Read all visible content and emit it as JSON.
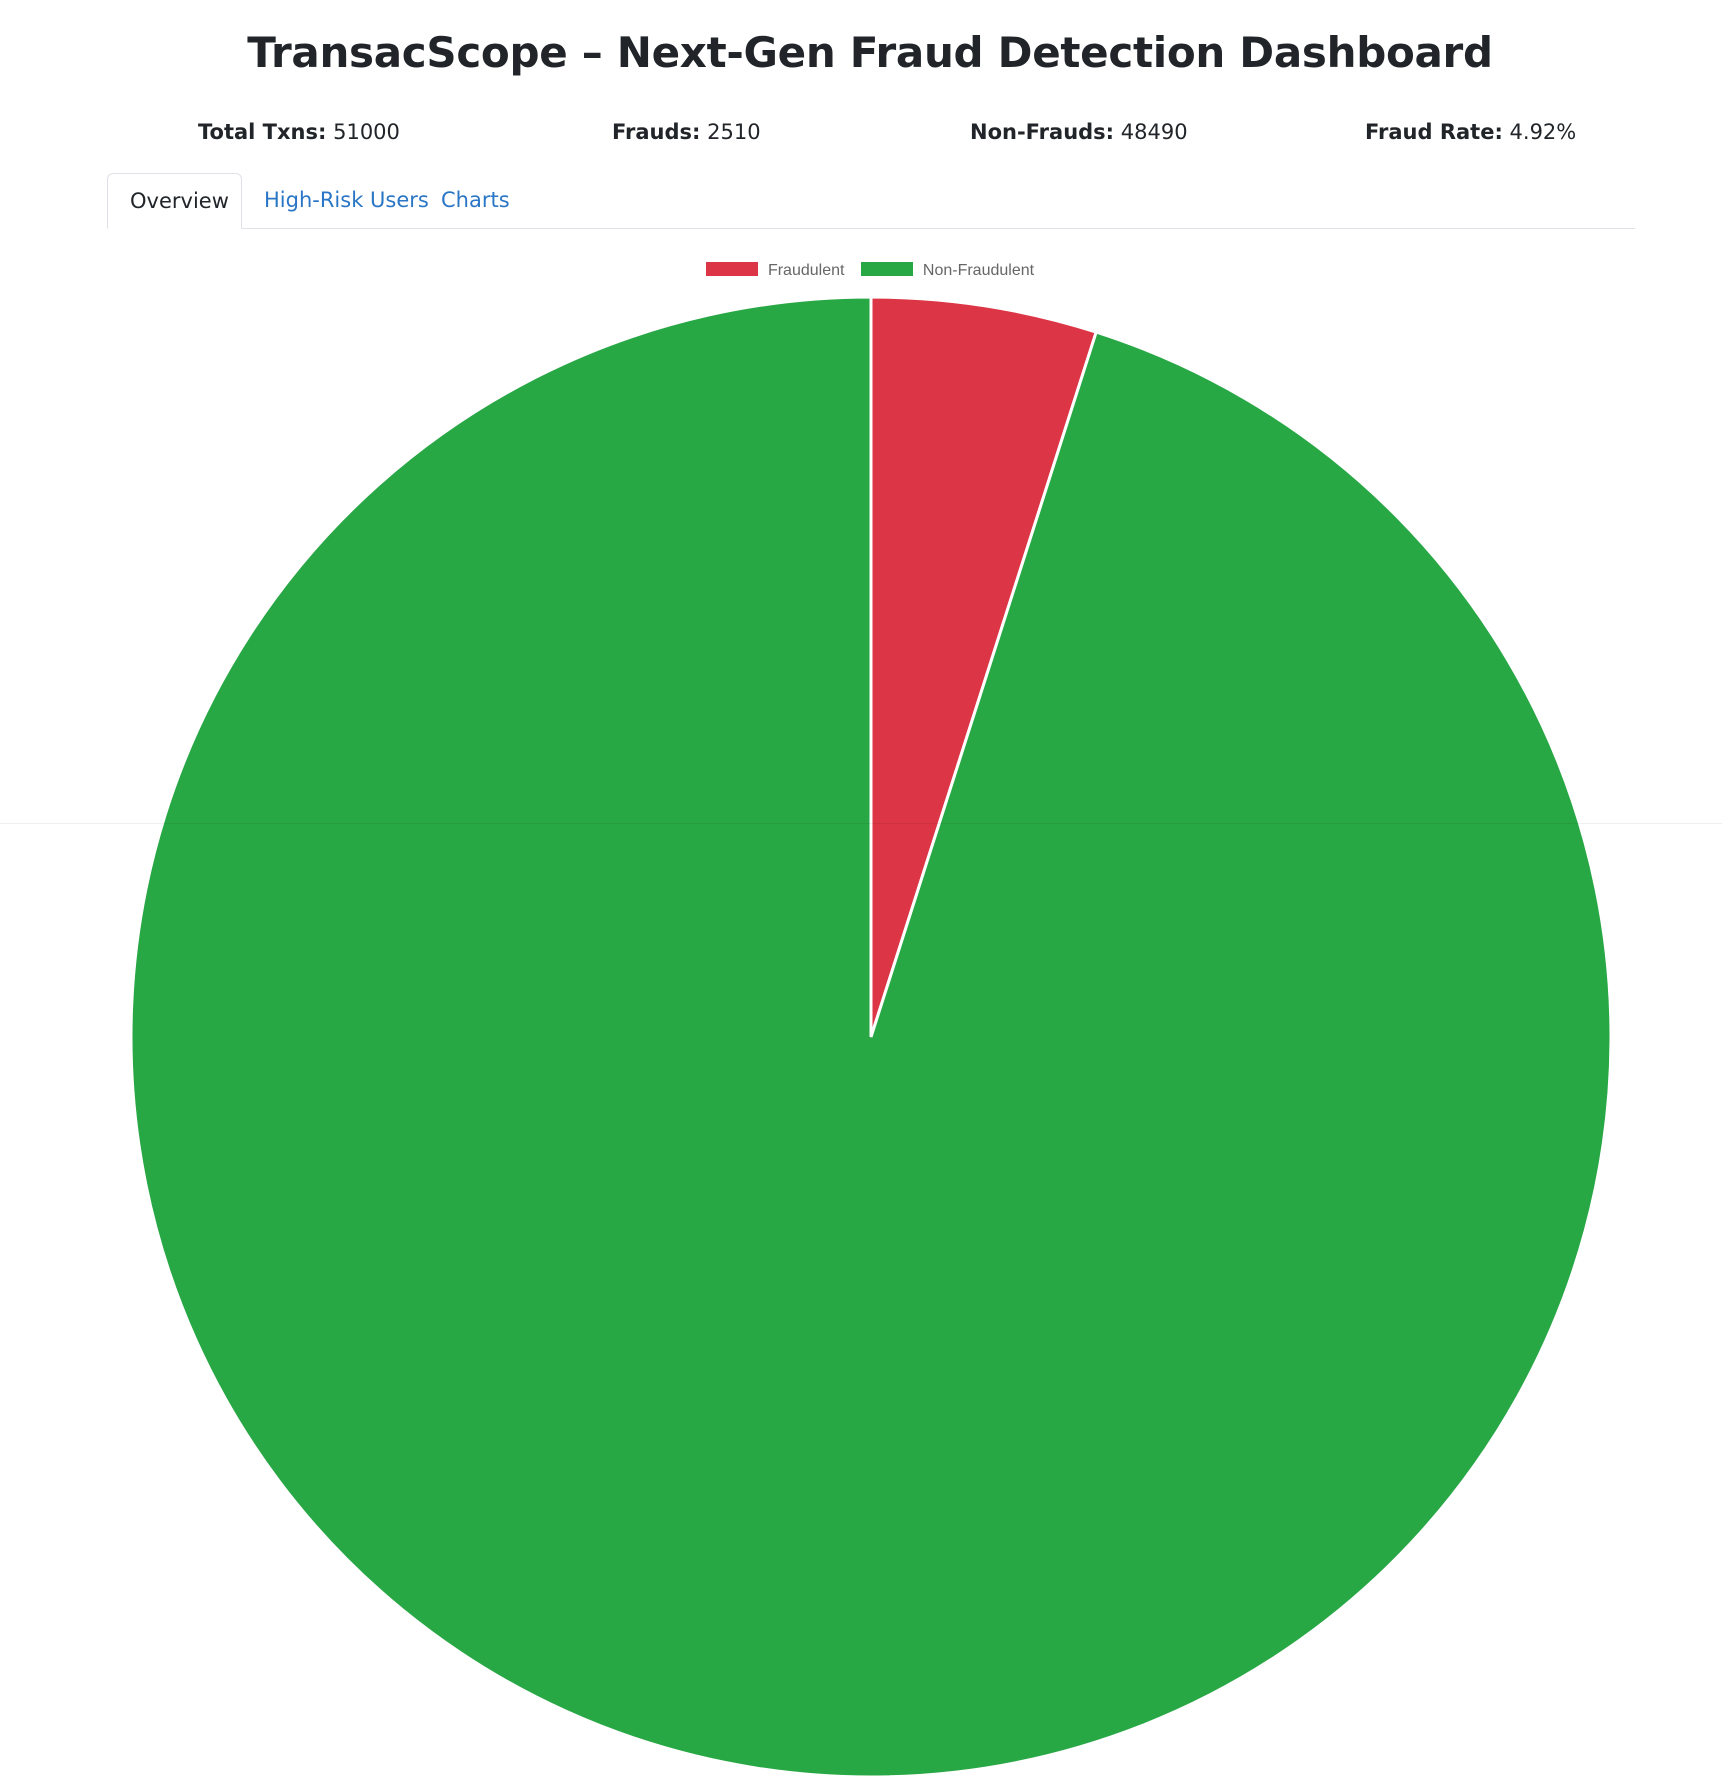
{
  "header": {
    "title": "TransacScope – Next-Gen Fraud Detection Dashboard"
  },
  "stats": {
    "total": {
      "label": "Total Txns:",
      "value": "51000"
    },
    "frauds": {
      "label": "Frauds:",
      "value": "2510"
    },
    "non_frauds": {
      "label": "Non-Frauds:",
      "value": "48490"
    },
    "fraud_rate": {
      "label": "Fraud Rate:",
      "value": "4.92%"
    }
  },
  "tabs": [
    {
      "label": "Overview",
      "active": true
    },
    {
      "label": "High-Risk Users",
      "active": false
    },
    {
      "label": "Charts",
      "active": false
    }
  ],
  "chart_data": {
    "type": "pie",
    "categories": [
      "Fraudulent",
      "Non-Fraudulent"
    ],
    "values": [
      2510,
      48490
    ],
    "colors": [
      "#dc3545",
      "#28a745"
    ],
    "legend": "top",
    "title": ""
  }
}
